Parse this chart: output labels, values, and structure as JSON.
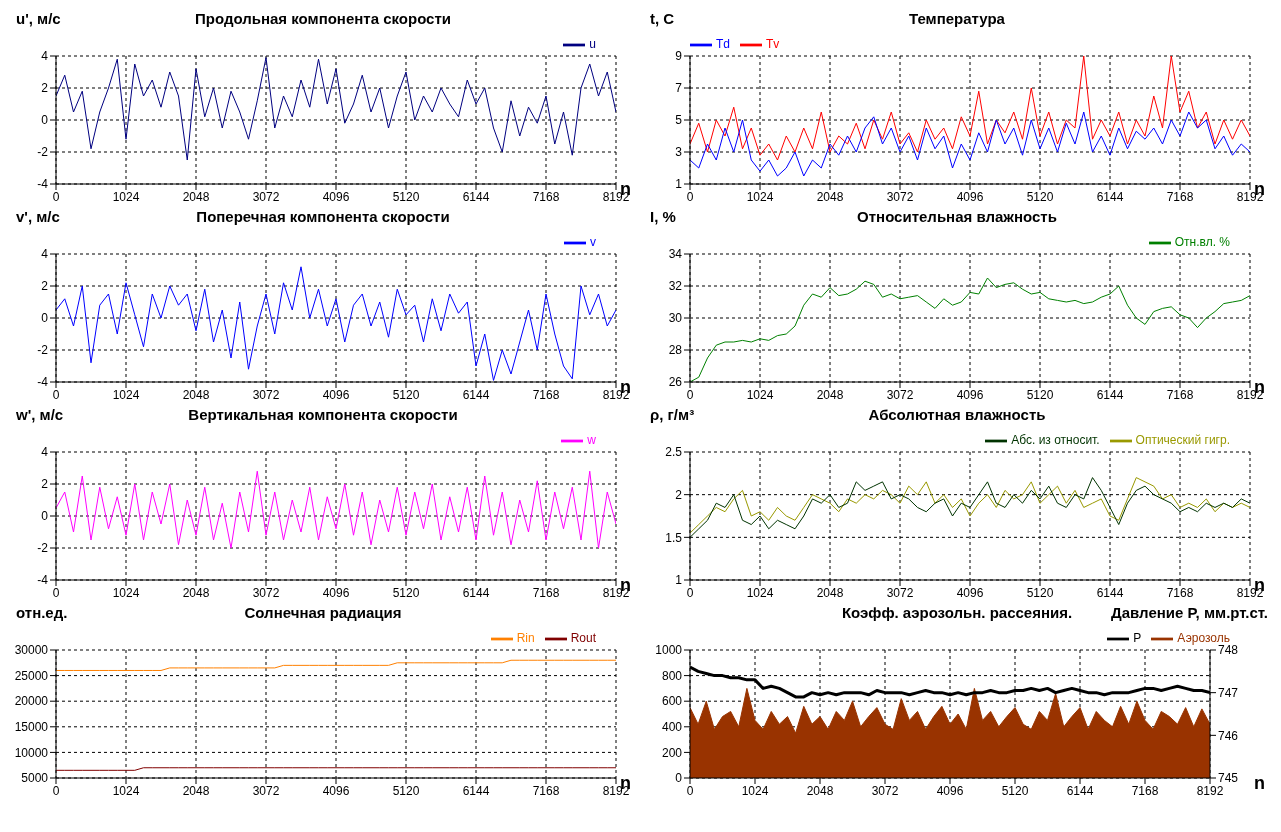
{
  "chart_data": [
    {
      "type": "line",
      "title": "Продольная компонента скорости",
      "ylabel": "u', м/с",
      "xlabel": "n",
      "grid": true,
      "legend": "top right",
      "x": [
        0,
        128,
        256,
        384,
        512,
        640,
        768,
        896,
        1024,
        1152,
        1280,
        1408,
        1536,
        1664,
        1792,
        1920,
        2048,
        2176,
        2304,
        2432,
        2560,
        2688,
        2816,
        2944,
        3072,
        3200,
        3328,
        3456,
        3584,
        3712,
        3840,
        3968,
        4096,
        4224,
        4352,
        4480,
        4608,
        4736,
        4864,
        4992,
        5120,
        5248,
        5376,
        5504,
        5632,
        5760,
        5888,
        6016,
        6144,
        6272,
        6400,
        6528,
        6656,
        6784,
        6912,
        7040,
        7168,
        7296,
        7424,
        7552,
        7680,
        7808,
        7936,
        8064,
        8192
      ],
      "xlim": [
        0,
        8192
      ],
      "xticks": [
        0,
        1024,
        2048,
        3072,
        4096,
        5120,
        6144,
        7168,
        8192
      ],
      "ylim": [
        -4,
        4
      ],
      "yticks": [
        -4,
        -2,
        0,
        2,
        4
      ],
      "series": [
        {
          "name": "u",
          "color": "#000080",
          "values": [
            1.5,
            2.8,
            0.5,
            1.8,
            -1.8,
            0.5,
            2.0,
            3.8,
            -1.2,
            3.5,
            1.5,
            2.5,
            0.8,
            3.0,
            1.5,
            -2.5,
            3.2,
            0.2,
            2.0,
            -0.5,
            1.8,
            0.5,
            -1.2,
            1.2,
            3.9,
            -0.5,
            1.5,
            0.2,
            2.5,
            0.8,
            3.8,
            1.0,
            3.2,
            -0.2,
            1.0,
            2.8,
            0.5,
            2.0,
            -0.5,
            1.5,
            3.0,
            0.0,
            1.5,
            0.5,
            2.0,
            1.0,
            0.2,
            2.5,
            1.0,
            2.0,
            -0.5,
            -2.0,
            1.2,
            -1.0,
            0.8,
            -0.2,
            1.5,
            -1.5,
            0.5,
            -2.2,
            2.0,
            3.5,
            1.5,
            3.0,
            0.5
          ]
        }
      ]
    },
    {
      "type": "line",
      "title": "Температура",
      "ylabel": "t, C",
      "xlabel": "n",
      "grid": true,
      "legend": "top left",
      "x": [
        0,
        128,
        256,
        384,
        512,
        640,
        768,
        896,
        1024,
        1152,
        1280,
        1408,
        1536,
        1664,
        1792,
        1920,
        2048,
        2176,
        2304,
        2432,
        2560,
        2688,
        2816,
        2944,
        3072,
        3200,
        3328,
        3456,
        3584,
        3712,
        3840,
        3968,
        4096,
        4224,
        4352,
        4480,
        4608,
        4736,
        4864,
        4992,
        5120,
        5248,
        5376,
        5504,
        5632,
        5760,
        5888,
        6016,
        6144,
        6272,
        6400,
        6528,
        6656,
        6784,
        6912,
        7040,
        7168,
        7296,
        7424,
        7552,
        7680,
        7808,
        7936,
        8064,
        8192
      ],
      "xlim": [
        0,
        8192
      ],
      "xticks": [
        0,
        1024,
        2048,
        3072,
        4096,
        5120,
        6144,
        7168,
        8192
      ],
      "ylim": [
        1,
        9
      ],
      "yticks": [
        1,
        3,
        5,
        7,
        9
      ],
      "series": [
        {
          "name": "Tv",
          "color": "#ff0000",
          "values": [
            3.5,
            4.8,
            3.0,
            5.0,
            4.0,
            5.8,
            3.2,
            4.5,
            2.8,
            3.5,
            2.5,
            4.0,
            3.0,
            4.5,
            3.2,
            5.5,
            3.0,
            4.0,
            3.5,
            4.8,
            3.2,
            5.0,
            3.8,
            5.5,
            3.5,
            4.2,
            3.0,
            5.0,
            3.8,
            4.5,
            3.2,
            5.2,
            4.0,
            6.8,
            3.5,
            5.0,
            4.2,
            5.5,
            3.8,
            7.0,
            4.0,
            5.5,
            3.5,
            5.0,
            4.5,
            9.0,
            3.8,
            5.0,
            4.0,
            5.5,
            3.5,
            5.0,
            4.0,
            6.5,
            4.5,
            9.0,
            5.5,
            6.8,
            4.5,
            5.5,
            3.5,
            5.0,
            3.8,
            5.0,
            4.0
          ]
        },
        {
          "name": "Td",
          "color": "#0000ff",
          "values": [
            2.5,
            2.0,
            3.5,
            2.5,
            4.5,
            3.0,
            5.0,
            2.5,
            1.8,
            2.5,
            1.5,
            2.0,
            3.0,
            1.5,
            2.5,
            2.0,
            3.5,
            2.8,
            4.0,
            3.0,
            4.5,
            5.2,
            3.5,
            4.5,
            3.0,
            4.0,
            2.5,
            4.5,
            3.2,
            4.0,
            2.0,
            3.5,
            2.5,
            4.2,
            3.0,
            5.0,
            3.5,
            4.5,
            2.8,
            5.0,
            3.2,
            4.5,
            3.0,
            4.8,
            3.5,
            5.5,
            3.0,
            4.0,
            2.8,
            4.5,
            3.2,
            4.3,
            3.8,
            4.5,
            3.5,
            5.0,
            4.0,
            5.5,
            4.5,
            5.0,
            3.2,
            4.0,
            2.8,
            3.5,
            3.0
          ]
        }
      ]
    },
    {
      "type": "line",
      "title": "Поперечная компонента скорости",
      "ylabel": "v', м/с",
      "xlabel": "n",
      "grid": true,
      "legend": "top right",
      "x": [
        0,
        128,
        256,
        384,
        512,
        640,
        768,
        896,
        1024,
        1152,
        1280,
        1408,
        1536,
        1664,
        1792,
        1920,
        2048,
        2176,
        2304,
        2432,
        2560,
        2688,
        2816,
        2944,
        3072,
        3200,
        3328,
        3456,
        3584,
        3712,
        3840,
        3968,
        4096,
        4224,
        4352,
        4480,
        4608,
        4736,
        4864,
        4992,
        5120,
        5248,
        5376,
        5504,
        5632,
        5760,
        5888,
        6016,
        6144,
        6272,
        6400,
        6528,
        6656,
        6784,
        6912,
        7040,
        7168,
        7296,
        7424,
        7552,
        7680,
        7808,
        7936,
        8064,
        8192
      ],
      "xlim": [
        0,
        8192
      ],
      "xticks": [
        0,
        1024,
        2048,
        3072,
        4096,
        5120,
        6144,
        7168,
        8192
      ],
      "ylim": [
        -4,
        4
      ],
      "yticks": [
        -4,
        -2,
        0,
        2,
        4
      ],
      "series": [
        {
          "name": "v",
          "color": "#0000ff",
          "values": [
            0.5,
            1.2,
            -0.5,
            2.0,
            -2.8,
            0.8,
            1.5,
            -1.0,
            2.2,
            0.2,
            -1.8,
            1.5,
            0.0,
            2.0,
            0.8,
            1.5,
            -0.8,
            1.8,
            -1.5,
            0.5,
            -2.5,
            1.0,
            -3.2,
            -0.5,
            1.5,
            -1.0,
            2.2,
            0.5,
            3.2,
            0.0,
            1.8,
            -0.5,
            1.2,
            -1.5,
            0.8,
            1.5,
            -0.5,
            1.0,
            -1.2,
            1.8,
            0.2,
            0.8,
            -1.5,
            1.2,
            -0.8,
            1.5,
            0.3,
            1.0,
            -3.0,
            -1.0,
            -3.9,
            -2.0,
            -3.5,
            -1.5,
            0.5,
            -2.0,
            1.5,
            -1.0,
            -3.0,
            -3.8,
            2.0,
            0.2,
            1.5,
            -0.5,
            0.5
          ]
        }
      ]
    },
    {
      "type": "line",
      "title": "Относительная влажность",
      "ylabel": "I, %",
      "xlabel": "n",
      "grid": true,
      "legend": "top right",
      "x": [
        0,
        128,
        256,
        384,
        512,
        640,
        768,
        896,
        1024,
        1152,
        1280,
        1408,
        1536,
        1664,
        1792,
        1920,
        2048,
        2176,
        2304,
        2432,
        2560,
        2688,
        2816,
        2944,
        3072,
        3200,
        3328,
        3456,
        3584,
        3712,
        3840,
        3968,
        4096,
        4224,
        4352,
        4480,
        4608,
        4736,
        4864,
        4992,
        5120,
        5248,
        5376,
        5504,
        5632,
        5760,
        5888,
        6016,
        6144,
        6272,
        6400,
        6528,
        6656,
        6784,
        6912,
        7040,
        7168,
        7296,
        7424,
        7552,
        7680,
        7808,
        7936,
        8064,
        8192
      ],
      "xlim": [
        0,
        8192
      ],
      "xticks": [
        0,
        1024,
        2048,
        3072,
        4096,
        5120,
        6144,
        7168,
        8192
      ],
      "ylim": [
        26,
        34
      ],
      "yticks": [
        26,
        28,
        30,
        32,
        34
      ],
      "series": [
        {
          "name": "Отн.вл. %",
          "color": "#008000",
          "values": [
            26.0,
            26.3,
            27.5,
            28.3,
            28.5,
            28.5,
            28.6,
            28.5,
            28.7,
            28.6,
            28.9,
            29.0,
            29.5,
            30.8,
            31.5,
            31.3,
            31.9,
            31.4,
            31.5,
            31.8,
            32.3,
            32.1,
            31.3,
            31.5,
            31.2,
            31.3,
            31.4,
            31.0,
            30.6,
            31.2,
            30.8,
            31.0,
            31.6,
            31.5,
            32.5,
            31.9,
            32.1,
            32.2,
            31.8,
            31.5,
            31.6,
            31.2,
            31.1,
            31.0,
            31.1,
            30.9,
            31.0,
            31.3,
            31.5,
            32.0,
            30.8,
            30.0,
            29.6,
            30.4,
            30.6,
            30.7,
            30.2,
            30.0,
            29.4,
            30.0,
            30.4,
            30.9,
            31.0,
            31.1,
            31.4
          ]
        }
      ]
    },
    {
      "type": "line",
      "title": "Вертикальная компонента скорости",
      "ylabel": "w', м/с",
      "xlabel": "n",
      "grid": true,
      "legend": "top right",
      "x": [
        0,
        128,
        256,
        384,
        512,
        640,
        768,
        896,
        1024,
        1152,
        1280,
        1408,
        1536,
        1664,
        1792,
        1920,
        2048,
        2176,
        2304,
        2432,
        2560,
        2688,
        2816,
        2944,
        3072,
        3200,
        3328,
        3456,
        3584,
        3712,
        3840,
        3968,
        4096,
        4224,
        4352,
        4480,
        4608,
        4736,
        4864,
        4992,
        5120,
        5248,
        5376,
        5504,
        5632,
        5760,
        5888,
        6016,
        6144,
        6272,
        6400,
        6528,
        6656,
        6784,
        6912,
        7040,
        7168,
        7296,
        7424,
        7552,
        7680,
        7808,
        7936,
        8064,
        8192
      ],
      "xlim": [
        0,
        8192
      ],
      "xticks": [
        0,
        1024,
        2048,
        3072,
        4096,
        5120,
        6144,
        7168,
        8192
      ],
      "ylim": [
        -4,
        4
      ],
      "yticks": [
        -4,
        -2,
        0,
        2,
        4
      ],
      "series": [
        {
          "name": "w",
          "color": "#ff00ff",
          "values": [
            0.5,
            1.5,
            -1.0,
            2.5,
            -1.5,
            1.8,
            -0.8,
            1.2,
            -1.2,
            2.0,
            -1.5,
            1.5,
            -0.5,
            2.0,
            -1.8,
            1.0,
            -1.2,
            1.8,
            -1.5,
            0.8,
            -2.0,
            1.5,
            -1.0,
            2.8,
            -1.2,
            1.5,
            -1.5,
            1.0,
            -1.0,
            1.8,
            -1.5,
            1.2,
            -0.8,
            2.0,
            -1.2,
            1.5,
            -1.8,
            1.0,
            -1.0,
            1.8,
            -1.2,
            1.5,
            -0.8,
            2.0,
            -1.5,
            1.2,
            -1.0,
            1.8,
            -1.5,
            2.5,
            -1.2,
            1.5,
            -1.8,
            1.0,
            -1.0,
            2.2,
            -1.5,
            1.5,
            -0.8,
            1.8,
            -1.5,
            2.8,
            -2.0,
            1.5,
            -0.5
          ]
        }
      ]
    },
    {
      "type": "line",
      "title": "Абсолютная влажность",
      "ylabel": "ρ, г/м³",
      "xlabel": "n",
      "grid": true,
      "legend": "top right",
      "x": [
        0,
        128,
        256,
        384,
        512,
        640,
        768,
        896,
        1024,
        1152,
        1280,
        1408,
        1536,
        1664,
        1792,
        1920,
        2048,
        2176,
        2304,
        2432,
        2560,
        2688,
        2816,
        2944,
        3072,
        3200,
        3328,
        3456,
        3584,
        3712,
        3840,
        3968,
        4096,
        4224,
        4352,
        4480,
        4608,
        4736,
        4864,
        4992,
        5120,
        5248,
        5376,
        5504,
        5632,
        5760,
        5888,
        6016,
        6144,
        6272,
        6400,
        6528,
        6656,
        6784,
        6912,
        7040,
        7168,
        7296,
        7424,
        7552,
        7680,
        7808,
        7936,
        8064,
        8192
      ],
      "xlim": [
        0,
        8192
      ],
      "xticks": [
        0,
        1024,
        2048,
        3072,
        4096,
        5120,
        6144,
        7168,
        8192
      ],
      "ylim": [
        1,
        2.5
      ],
      "yticks": [
        1,
        1.5,
        2,
        2.5
      ],
      "series": [
        {
          "name": "Оптический гигр.",
          "color": "#999900",
          "values": [
            1.55,
            1.65,
            1.75,
            1.85,
            1.8,
            1.95,
            2.05,
            1.75,
            1.8,
            1.7,
            1.85,
            1.75,
            1.7,
            1.85,
            2.0,
            1.95,
            1.9,
            1.8,
            1.95,
            1.9,
            2.0,
            1.95,
            2.05,
            2.0,
            1.9,
            2.1,
            2.0,
            2.15,
            1.9,
            2.0,
            1.85,
            1.95,
            1.75,
            1.9,
            2.0,
            1.85,
            2.05,
            1.95,
            2.0,
            2.15,
            1.9,
            2.0,
            2.1,
            1.9,
            2.05,
            1.85,
            1.9,
            1.95,
            1.75,
            1.7,
            1.95,
            2.2,
            2.15,
            2.1,
            1.95,
            2.0,
            1.85,
            1.9,
            1.85,
            1.95,
            1.8,
            1.9,
            1.85,
            1.9,
            1.85
          ]
        },
        {
          "name": "Абс. из относит.",
          "color": "#003300",
          "values": [
            1.5,
            1.6,
            1.7,
            1.9,
            1.85,
            2.0,
            1.7,
            1.65,
            1.75,
            1.6,
            1.7,
            1.65,
            1.6,
            1.75,
            1.95,
            1.9,
            2.0,
            1.85,
            1.9,
            2.15,
            2.05,
            2.1,
            2.15,
            1.95,
            2.0,
            1.95,
            1.85,
            1.8,
            1.9,
            1.95,
            1.75,
            1.9,
            1.85,
            2.0,
            2.15,
            1.9,
            1.85,
            2.0,
            1.9,
            2.05,
            1.95,
            2.1,
            1.9,
            1.85,
            2.0,
            1.95,
            2.2,
            2.05,
            1.85,
            1.65,
            1.9,
            2.05,
            2.1,
            2.0,
            1.95,
            1.9,
            1.8,
            1.85,
            1.8,
            1.9,
            1.85,
            1.9,
            1.85,
            1.95,
            1.9
          ]
        }
      ]
    },
    {
      "type": "line",
      "title": "Солнечная радиация",
      "ylabel": "отн.ед.",
      "xlabel": "n",
      "grid": true,
      "legend": "top right",
      "x": [
        0,
        128,
        256,
        384,
        512,
        640,
        768,
        896,
        1024,
        1152,
        1280,
        1408,
        1536,
        1664,
        1792,
        1920,
        2048,
        2176,
        2304,
        2432,
        2560,
        2688,
        2816,
        2944,
        3072,
        3200,
        3328,
        3456,
        3584,
        3712,
        3840,
        3968,
        4096,
        4224,
        4352,
        4480,
        4608,
        4736,
        4864,
        4992,
        5120,
        5248,
        5376,
        5504,
        5632,
        5760,
        5888,
        6016,
        6144,
        6272,
        6400,
        6528,
        6656,
        6784,
        6912,
        7040,
        7168,
        7296,
        7424,
        7552,
        7680,
        7808,
        7936,
        8064,
        8192
      ],
      "xlim": [
        0,
        8192
      ],
      "xticks": [
        0,
        1024,
        2048,
        3072,
        4096,
        5120,
        6144,
        7168,
        8192
      ],
      "ylim": [
        5000,
        30000
      ],
      "yticks": [
        5000,
        10000,
        15000,
        20000,
        25000,
        30000
      ],
      "series": [
        {
          "name": "Rin",
          "color": "#ff8000",
          "values": [
            26000,
            26000,
            26000,
            26000,
            26000,
            26000,
            26000,
            26000,
            26000,
            26000,
            26000,
            26000,
            26000,
            26500,
            26500,
            26500,
            26500,
            26500,
            26500,
            26500,
            26500,
            26500,
            26500,
            26500,
            26500,
            26500,
            27000,
            27000,
            27000,
            27000,
            27000,
            27000,
            27000,
            27000,
            27000,
            27000,
            27000,
            27000,
            27000,
            27500,
            27500,
            27500,
            27500,
            27500,
            27500,
            27500,
            27500,
            27500,
            27500,
            27500,
            27500,
            27500,
            28000,
            28000,
            28000,
            28000,
            28000,
            28000,
            28000,
            28000,
            28000,
            28000,
            28000,
            28000,
            28000
          ]
        },
        {
          "name": "Rout",
          "color": "#800000",
          "values": [
            6500,
            6500,
            6500,
            6500,
            6500,
            6500,
            6500,
            6500,
            6500,
            6500,
            7000,
            7000,
            7000,
            7000,
            7000,
            7000,
            7000,
            7000,
            7000,
            7000,
            7000,
            7000,
            7000,
            7000,
            7000,
            7000,
            7000,
            7000,
            7000,
            7000,
            7000,
            7000,
            7000,
            7000,
            7000,
            7000,
            7000,
            7000,
            7000,
            7000,
            7000,
            7000,
            7000,
            7000,
            7000,
            7000,
            7000,
            7000,
            7000,
            7000,
            7000,
            7000,
            7000,
            7000,
            7000,
            7000,
            7000,
            7000,
            7000,
            7000,
            7000,
            7000,
            7000,
            7000,
            7000
          ]
        }
      ]
    },
    {
      "type": "line",
      "title": "Коэфф. аэрозольн. рассеяния.",
      "y2label": "Давление  P, мм.рт.ст.",
      "xlabel": "n",
      "grid": true,
      "legend": "top right",
      "x": [
        0,
        128,
        256,
        384,
        512,
        640,
        768,
        896,
        1024,
        1152,
        1280,
        1408,
        1536,
        1664,
        1792,
        1920,
        2048,
        2176,
        2304,
        2432,
        2560,
        2688,
        2816,
        2944,
        3072,
        3200,
        3328,
        3456,
        3584,
        3712,
        3840,
        3968,
        4096,
        4224,
        4352,
        4480,
        4608,
        4736,
        4864,
        4992,
        5120,
        5248,
        5376,
        5504,
        5632,
        5760,
        5888,
        6016,
        6144,
        6272,
        6400,
        6528,
        6656,
        6784,
        6912,
        7040,
        7168,
        7296,
        7424,
        7552,
        7680,
        7808,
        7936,
        8064,
        8192
      ],
      "xlim": [
        0,
        8192
      ],
      "xticks": [
        0,
        1024,
        2048,
        3072,
        4096,
        5120,
        6144,
        7168,
        8192
      ],
      "ylim": [
        0,
        1000
      ],
      "yticks": [
        0,
        200,
        400,
        600,
        800,
        1000
      ],
      "y2lim": [
        745,
        748
      ],
      "y2ticks": [
        745,
        746,
        747,
        748
      ],
      "series": [
        {
          "name": "Аэрозоль",
          "type": "area",
          "color": "#993300",
          "values": [
            550,
            420,
            600,
            380,
            480,
            520,
            400,
            700,
            450,
            380,
            520,
            420,
            480,
            350,
            560,
            420,
            480,
            380,
            520,
            450,
            600,
            400,
            480,
            550,
            420,
            380,
            620,
            450,
            520,
            380,
            480,
            560,
            420,
            500,
            380,
            700,
            450,
            520,
            400,
            480,
            550,
            420,
            380,
            520,
            450,
            660,
            400,
            480,
            550,
            380,
            520,
            450,
            400,
            560,
            420,
            600,
            450,
            380,
            520,
            480,
            420,
            550,
            400,
            540,
            420
          ]
        },
        {
          "name": "P",
          "axis": "y2",
          "color": "#000000",
          "values": [
            747.6,
            747.5,
            747.45,
            747.4,
            747.4,
            747.35,
            747.35,
            747.3,
            747.3,
            747.1,
            747.15,
            747.1,
            747.0,
            746.9,
            746.9,
            747.0,
            746.95,
            747.0,
            746.95,
            747.0,
            747.0,
            747.0,
            746.95,
            747.05,
            747.0,
            747.0,
            747.0,
            746.95,
            747.0,
            747.05,
            747.0,
            747.0,
            746.95,
            747.0,
            746.95,
            747.0,
            747.0,
            747.05,
            747.0,
            747.0,
            747.05,
            747.05,
            747.1,
            747.05,
            747.1,
            747.0,
            747.05,
            747.1,
            747.05,
            747.0,
            747.0,
            746.95,
            747.0,
            747.0,
            747.0,
            747.05,
            747.1,
            747.1,
            747.05,
            747.1,
            747.15,
            747.1,
            747.05,
            747.05,
            747.0
          ]
        }
      ]
    }
  ]
}
